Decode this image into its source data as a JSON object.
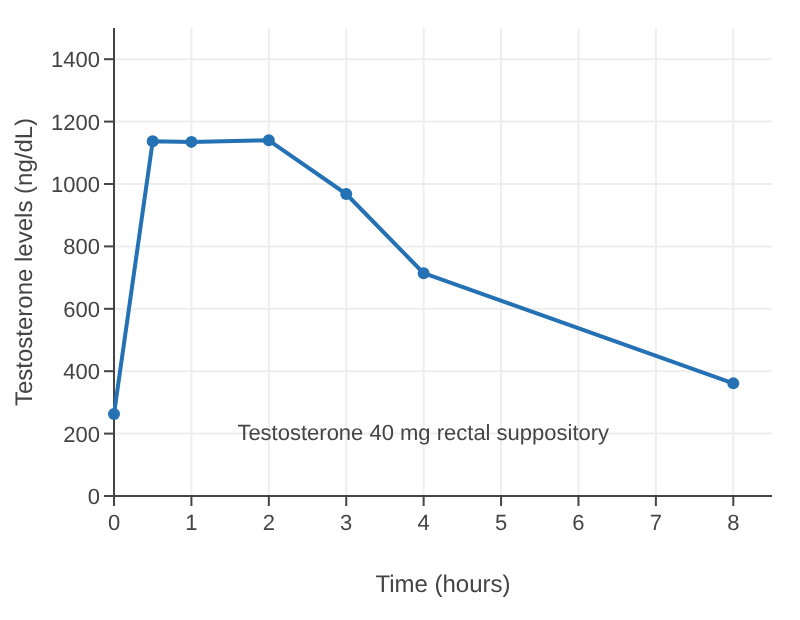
{
  "chart_data": {
    "type": "line",
    "xlabel": "Time (hours)",
    "ylabel": "Testosterone levels (ng/dL)",
    "x": [
      0,
      0.5,
      1,
      2,
      3,
      4,
      8
    ],
    "series": [
      {
        "color": "#2471b3",
        "values": [
          263,
          1137,
          1135,
          1140,
          968,
          714,
          361
        ]
      }
    ],
    "xlim": [
      0,
      8.5
    ],
    "xticks": [
      0,
      1,
      2,
      3,
      4,
      5,
      6,
      7,
      8
    ],
    "ylim": [
      0,
      1500
    ],
    "yticks": [
      0,
      200,
      400,
      600,
      800,
      1000,
      1200,
      1400
    ],
    "grid": true,
    "marker": "circle",
    "line_style": "solid",
    "annotations": [
      "Testosterone 40 mg rectal suppository"
    ]
  }
}
